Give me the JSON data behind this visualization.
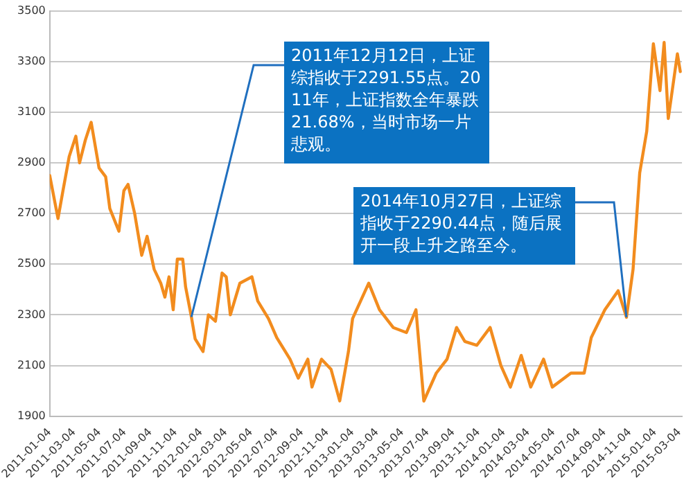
{
  "chart_data": {
    "type": "line",
    "x": [
      "2011-01-04",
      "2011-01-24",
      "2011-02-05",
      "2011-02-20",
      "2011-03-08",
      "2011-03-17",
      "2011-03-31",
      "2011-04-14",
      "2011-05-03",
      "2011-05-19",
      "2011-05-29",
      "2011-06-20",
      "2011-07-02",
      "2011-07-12",
      "2011-07-28",
      "2011-08-14",
      "2011-08-27",
      "2011-09-13",
      "2011-09-29",
      "2011-10-09",
      "2011-10-19",
      "2011-10-29",
      "2011-11-08",
      "2011-11-21",
      "2011-11-28",
      "2011-12-12",
      "2011-12-21",
      "2012-01-09",
      "2012-01-22",
      "2012-02-08",
      "2012-02-24",
      "2012-03-05",
      "2012-03-15",
      "2012-04-07",
      "2012-05-06",
      "2012-05-20",
      "2012-06-15",
      "2012-07-05",
      "2012-08-06",
      "2012-08-26",
      "2012-09-18",
      "2012-09-28",
      "2012-10-21",
      "2012-11-13",
      "2012-12-04",
      "2012-12-25",
      "2013-01-04",
      "2013-02-12",
      "2013-03-10",
      "2013-04-12",
      "2013-05-14",
      "2013-06-06",
      "2013-06-25",
      "2013-07-25",
      "2013-08-20",
      "2013-09-12",
      "2013-10-02",
      "2013-10-31",
      "2013-12-02",
      "2013-12-28",
      "2014-01-20",
      "2014-02-15",
      "2014-03-10",
      "2014-04-10",
      "2014-05-01",
      "2014-06-15",
      "2014-07-17",
      "2014-08-03",
      "2014-09-05",
      "2014-10-07",
      "2014-10-27",
      "2014-11-12",
      "2014-11-28",
      "2014-12-15",
      "2014-12-31",
      "2015-01-16",
      "2015-01-26",
      "2015-02-05",
      "2015-02-27",
      "2015-03-06"
    ],
    "series": [
      {
        "color": "#f28c1e",
        "values": [
          2850,
          2680,
          2790,
          2925,
          3005,
          2900,
          2990,
          3060,
          2880,
          2845,
          2720,
          2630,
          2790,
          2815,
          2700,
          2535,
          2610,
          2480,
          2425,
          2370,
          2450,
          2320,
          2520,
          2520,
          2410,
          2291.55,
          2205,
          2155,
          2300,
          2275,
          2465,
          2450,
          2300,
          2425,
          2450,
          2355,
          2285,
          2210,
          2125,
          2050,
          2125,
          2015,
          2125,
          2085,
          1960,
          2155,
          2285,
          2425,
          2320,
          2250,
          2230,
          2320,
          1960,
          2070,
          2125,
          2250,
          2195,
          2180,
          2250,
          2100,
          2015,
          2140,
          2015,
          2125,
          2015,
          2070,
          2070,
          2210,
          2320,
          2395,
          2290.44,
          2480,
          2860,
          3025,
          3370,
          3185,
          3375,
          3075,
          3330,
          3260
        ]
      }
    ],
    "xlim": [
      "2011-01-04",
      "2015-03-10"
    ],
    "xticks": [
      "2011-01-04",
      "2011-03-04",
      "2011-05-04",
      "2011-07-04",
      "2011-09-04",
      "2011-11-04",
      "2012-01-04",
      "2012-03-04",
      "2012-05-04",
      "2012-07-04",
      "2012-09-04",
      "2012-11-04",
      "2013-01-04",
      "2013-03-04",
      "2013-05-04",
      "2013-07-04",
      "2013-09-04",
      "2013-11-04",
      "2014-01-04",
      "2014-03-04",
      "2014-05-04",
      "2014-07-04",
      "2014-09-04",
      "2014-11-04",
      "2015-01-04",
      "2015-03-04"
    ],
    "ylim": [
      1900,
      3500
    ],
    "yticks": [
      1900,
      2100,
      2300,
      2500,
      2700,
      2900,
      3100,
      3300,
      3500
    ],
    "grid": "y",
    "legend": false,
    "marker": "none",
    "line_style": "solid",
    "annotations": [
      {
        "text": "2011年12月12日，上证综指收于2291.55点。2011年，上证指数全年暴跌21.68%，当时市场一片悲观。",
        "x": "2011-12-12",
        "y": 2291.55
      },
      {
        "text": "2014年10月27日，上证综指收于2290.44点，随后展开一段上升之路至今。",
        "x": "2014-10-27",
        "y": 2290.44
      }
    ]
  }
}
